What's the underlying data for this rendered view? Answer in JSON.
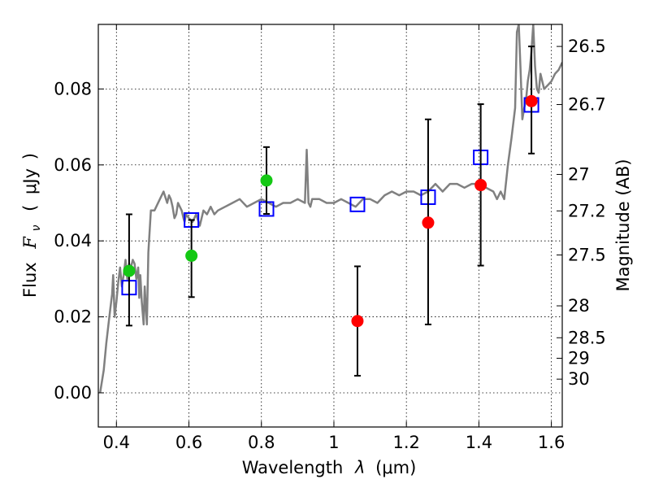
{
  "chart_data": {
    "type": "scatter",
    "xlabel_text": "Wavelength",
    "xlabel_symbol": "λ",
    "xlabel_units": "(μm)",
    "ylabel_text": "Flux",
    "ylabel_symbol": "F",
    "ylabel_subscript": "ν",
    "ylabel_units": "μJy",
    "y2label": "Magnitude (AB)",
    "xlim": [
      0.35,
      1.63
    ],
    "ylim": [
      -0.009,
      0.097
    ],
    "grid": true,
    "x_ticks": [
      0.4,
      0.6,
      0.8,
      1.0,
      1.2,
      1.4,
      1.6
    ],
    "x_tick_labels": [
      "0.4",
      "0.6",
      "0.8",
      "1",
      "1.2",
      "1.4",
      "1.6"
    ],
    "y_ticks": [
      0.0,
      0.02,
      0.04,
      0.06,
      0.08
    ],
    "y_tick_labels": [
      "0.00",
      "0.02",
      "0.04",
      "0.06",
      "0.08"
    ],
    "mag_ticks": [
      {
        "label": "26.5",
        "flux": 0.0912
      },
      {
        "label": "26.7",
        "flux": 0.0759
      },
      {
        "label": "27",
        "flux": 0.0575
      },
      {
        "label": "27.2",
        "flux": 0.0479
      },
      {
        "label": "27.5",
        "flux": 0.0363
      },
      {
        "label": "28",
        "flux": 0.0229
      },
      {
        "label": "28.5",
        "flux": 0.0145
      },
      {
        "label": "29",
        "flux": 0.0091
      },
      {
        "label": "30",
        "flux": 0.0036
      }
    ],
    "series": [
      {
        "name": "model spectrum",
        "kind": "line",
        "color": "#808080",
        "x": [
          0.355,
          0.365,
          0.372,
          0.378,
          0.383,
          0.388,
          0.391,
          0.395,
          0.4,
          0.405,
          0.41,
          0.415,
          0.42,
          0.425,
          0.43,
          0.435,
          0.44,
          0.445,
          0.45,
          0.455,
          0.46,
          0.463,
          0.466,
          0.47,
          0.475,
          0.478,
          0.481,
          0.484,
          0.488,
          0.495,
          0.505,
          0.52,
          0.53,
          0.54,
          0.545,
          0.55,
          0.555,
          0.56,
          0.565,
          0.57,
          0.58,
          0.585,
          0.588,
          0.592,
          0.6,
          0.61,
          0.62,
          0.63,
          0.64,
          0.65,
          0.66,
          0.67,
          0.68,
          0.7,
          0.72,
          0.74,
          0.76,
          0.78,
          0.8,
          0.82,
          0.84,
          0.86,
          0.88,
          0.9,
          0.92,
          0.925,
          0.93,
          0.935,
          0.94,
          0.96,
          0.98,
          1.0,
          1.02,
          1.04,
          1.06,
          1.08,
          1.1,
          1.12,
          1.14,
          1.16,
          1.18,
          1.2,
          1.22,
          1.24,
          1.26,
          1.28,
          1.3,
          1.32,
          1.34,
          1.36,
          1.38,
          1.4,
          1.42,
          1.44,
          1.45,
          1.46,
          1.47,
          1.48,
          1.49,
          1.5,
          1.505,
          1.51,
          1.515,
          1.52,
          1.525,
          1.53,
          1.535,
          1.54,
          1.545,
          1.55,
          1.555,
          1.56,
          1.565,
          1.57,
          1.58,
          1.59,
          1.6,
          1.61,
          1.62,
          1.63
        ],
        "y": [
          0.0,
          0.006,
          0.013,
          0.018,
          0.022,
          0.026,
          0.031,
          0.02,
          0.024,
          0.029,
          0.033,
          0.028,
          0.031,
          0.035,
          0.03,
          0.034,
          0.033,
          0.035,
          0.034,
          0.03,
          0.033,
          0.025,
          0.031,
          0.024,
          0.018,
          0.028,
          0.023,
          0.018,
          0.037,
          0.048,
          0.048,
          0.051,
          0.053,
          0.05,
          0.052,
          0.051,
          0.049,
          0.046,
          0.047,
          0.05,
          0.048,
          0.046,
          0.045,
          0.047,
          0.046,
          0.045,
          0.047,
          0.044,
          0.048,
          0.047,
          0.049,
          0.047,
          0.048,
          0.049,
          0.05,
          0.051,
          0.049,
          0.05,
          0.051,
          0.05,
          0.049,
          0.05,
          0.05,
          0.051,
          0.05,
          0.064,
          0.05,
          0.049,
          0.051,
          0.051,
          0.05,
          0.05,
          0.051,
          0.05,
          0.049,
          0.051,
          0.051,
          0.05,
          0.052,
          0.053,
          0.052,
          0.053,
          0.053,
          0.052,
          0.053,
          0.055,
          0.053,
          0.055,
          0.055,
          0.054,
          0.055,
          0.055,
          0.054,
          0.053,
          0.051,
          0.053,
          0.051,
          0.06,
          0.067,
          0.075,
          0.095,
          0.097,
          0.085,
          0.072,
          0.075,
          0.077,
          0.082,
          0.085,
          0.09,
          0.097,
          0.086,
          0.08,
          0.079,
          0.084,
          0.08,
          0.081,
          0.082,
          0.084,
          0.085,
          0.087
        ]
      },
      {
        "name": "model photometry",
        "kind": "square",
        "color": "#0000ff",
        "x": [
          0.435,
          0.607,
          0.814,
          1.065,
          1.26,
          1.405,
          1.545
        ],
        "y": [
          0.0277,
          0.0455,
          0.0484,
          0.0496,
          0.0515,
          0.062,
          0.0758
        ]
      },
      {
        "name": "green detections",
        "kind": "circle",
        "color": "#14c814",
        "x": [
          0.435,
          0.607,
          0.814
        ],
        "y": [
          0.0321,
          0.0361,
          0.0559
        ],
        "err_low": [
          0.0144,
          0.0109,
          0.0088
        ],
        "err_high": [
          0.0149,
          0.0094,
          0.0088
        ]
      },
      {
        "name": "red detections",
        "kind": "circle",
        "color": "#ff0000",
        "x": [
          1.065,
          1.26,
          1.405,
          1.545
        ],
        "y": [
          0.0189,
          0.0448,
          0.0547,
          0.0768
        ],
        "err_low": [
          0.0144,
          0.0268,
          0.0212,
          0.0138
        ],
        "err_high": [
          0.0144,
          0.0272,
          0.0213,
          0.0144
        ]
      }
    ]
  }
}
